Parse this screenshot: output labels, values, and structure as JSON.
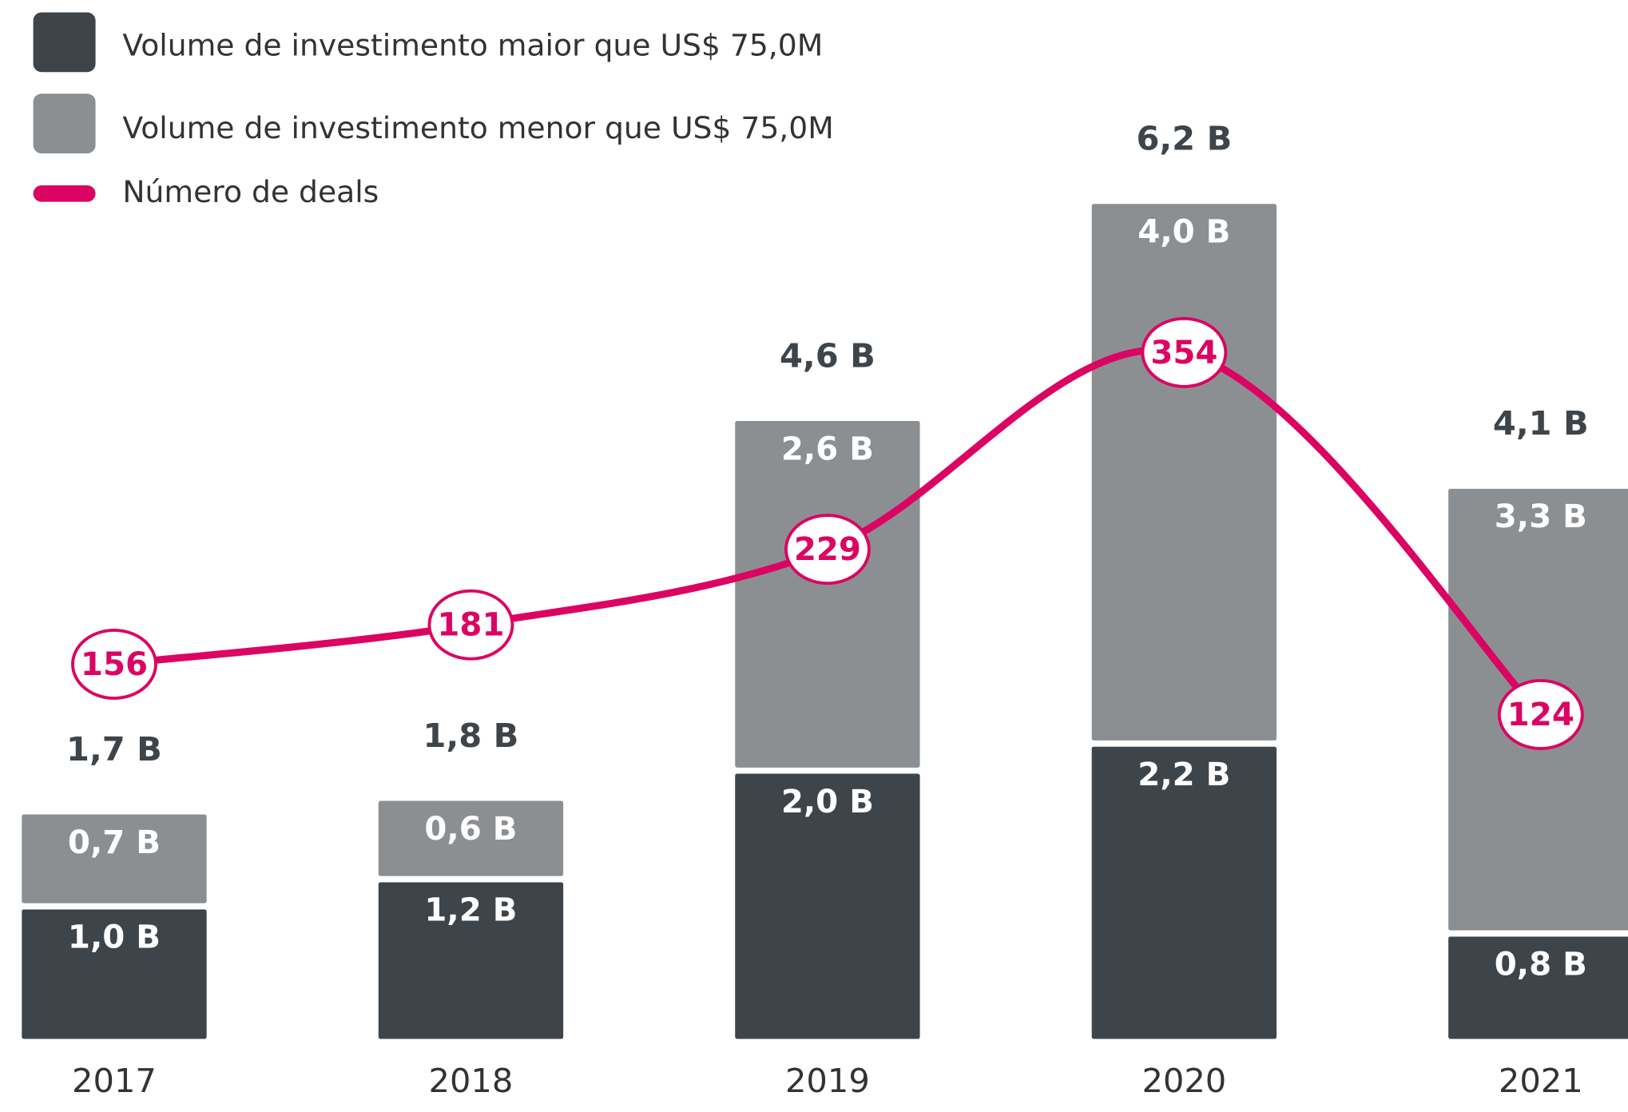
{
  "chart_data": {
    "type": "bar",
    "categories": [
      "2017",
      "2018",
      "2019",
      "2020",
      "2021"
    ],
    "series": [
      {
        "name": "Volume de investimento maior que US$ 75,0M",
        "color": "#3d454b",
        "values": [
          1.0,
          1.2,
          2.0,
          2.2,
          0.8
        ],
        "value_labels": [
          "1,0 B",
          "1,2 B",
          "2,0 B",
          "2,2 B",
          "0,8 B"
        ]
      },
      {
        "name": "Volume de investimento menor que US$ 75,0M",
        "color": "#8c8f92",
        "values": [
          0.7,
          0.6,
          2.6,
          4.0,
          3.3
        ],
        "value_labels": [
          "0,7 B",
          "0,6 B",
          "2,6 B",
          "4,0 B",
          "3,3 B"
        ]
      },
      {
        "name": "Número de deals",
        "type": "line",
        "axis": "y2",
        "color": "#dc0462",
        "values": [
          156,
          181,
          229,
          354,
          124
        ]
      }
    ],
    "totals": {
      "values": [
        1.7,
        1.8,
        4.6,
        6.2,
        4.1
      ],
      "value_labels": [
        "1,7 B",
        "1,8 B",
        "4,6 B",
        "6,2 B",
        "4,1 B"
      ]
    },
    "stacked": true,
    "ylim": [
      0,
      7.68
    ],
    "y2lim": [
      -84,
      578
    ]
  }
}
